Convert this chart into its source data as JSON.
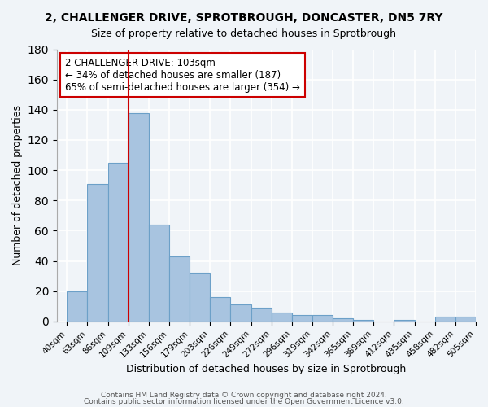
{
  "title": "2, CHALLENGER DRIVE, SPROTBROUGH, DONCASTER, DN5 7RY",
  "subtitle": "Size of property relative to detached houses in Sprotbrough",
  "xlabel": "Distribution of detached houses by size in Sprotbrough",
  "ylabel": "Number of detached properties",
  "bar_values": [
    20,
    91,
    105,
    138,
    64,
    43,
    32,
    16,
    11,
    9,
    6,
    4,
    4,
    2,
    1,
    0,
    1,
    0,
    3,
    3
  ],
  "bar_labels": [
    "40sqm",
    "63sqm",
    "86sqm",
    "109sqm",
    "133sqm",
    "156sqm",
    "179sqm",
    "203sqm",
    "226sqm",
    "249sqm",
    "272sqm",
    "296sqm",
    "319sqm",
    "342sqm",
    "365sqm",
    "389sqm",
    "412sqm",
    "435sqm",
    "458sqm",
    "482sqm",
    "505sqm"
  ],
  "bar_color": "#a8c4e0",
  "bar_edge_color": "#6ca0c8",
  "vline_x": 3,
  "vline_color": "#cc0000",
  "ylim": [
    0,
    180
  ],
  "yticks": [
    0,
    20,
    40,
    60,
    80,
    100,
    120,
    140,
    160,
    180
  ],
  "annotation_title": "2 CHALLENGER DRIVE: 103sqm",
  "annotation_line1": "← 34% of detached houses are smaller (187)",
  "annotation_line2": "65% of semi-detached houses are larger (354) →",
  "annotation_box_color": "#ffffff",
  "annotation_box_edge": "#cc0000",
  "footer1": "Contains HM Land Registry data © Crown copyright and database right 2024.",
  "footer2": "Contains public sector information licensed under the Open Government Licence v3.0.",
  "background_color": "#f0f4f8",
  "grid_color": "#ffffff"
}
